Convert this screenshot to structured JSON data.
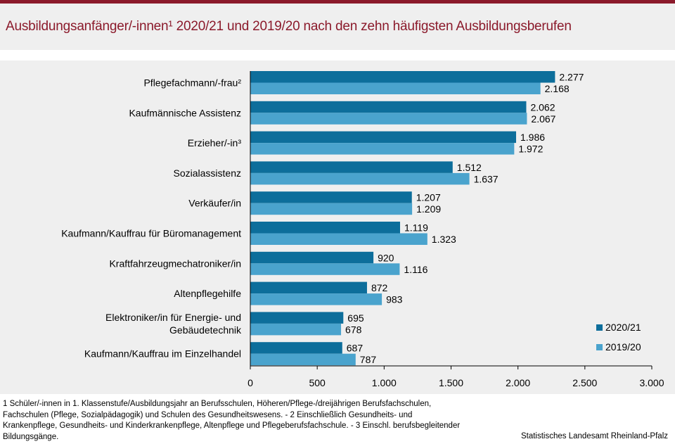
{
  "title": "Ausbildungsanfänger/-innen¹ 2020/21 und 2019/20 nach den zehn häufigsten Ausbildungsberufen",
  "colors": {
    "s1": "#0d6e9b",
    "s2": "#4aa3cd",
    "accent": "#8b1a2b",
    "plot_bg": "#efefef"
  },
  "chart_data": {
    "type": "bar",
    "orientation": "horizontal",
    "categories": [
      [
        "Pflegefachmann/-frau²"
      ],
      [
        "Kaufmännische Assistenz"
      ],
      [
        "Erzieher/-in³"
      ],
      [
        "Sozialassistenz"
      ],
      [
        "Verkäufer/in"
      ],
      [
        "Kaufmann/Kauffrau für Büromanagement"
      ],
      [
        "Kraftfahrzeugmechatroniker/in"
      ],
      [
        "Altenpflegehilfe"
      ],
      [
        "Elektroniker/in für Energie- und",
        "Gebäudetechnik"
      ],
      [
        "Kaufmann/Kauffrau im Einzelhandel"
      ]
    ],
    "series": [
      {
        "name": "2020/21",
        "values": [
          2277,
          2062,
          1986,
          1512,
          1207,
          1119,
          920,
          872,
          695,
          687
        ],
        "labels": [
          "2.277",
          "2.062",
          "1.986",
          "1.512",
          "1.207",
          "1.119",
          "920",
          "872",
          "695",
          "687"
        ]
      },
      {
        "name": "2019/20",
        "values": [
          2168,
          2067,
          1972,
          1637,
          1209,
          1323,
          1116,
          983,
          678,
          787
        ],
        "labels": [
          "2.168",
          "2.067",
          "1.972",
          "1.637",
          "1.209",
          "1.323",
          "1.116",
          "983",
          "678",
          "787"
        ]
      }
    ],
    "xlim": [
      0,
      3000
    ],
    "xticks": [
      0,
      500,
      1000,
      1500,
      2000,
      2500,
      3000
    ],
    "xtick_labels": [
      "0",
      "500",
      "1.000",
      "1.500",
      "2.000",
      "2.500",
      "3.000"
    ],
    "legend_position": "bottom-right",
    "grid": false
  },
  "footnote": "1 Schüler/-innen in 1. Klassenstufe/Ausbildungsjahr an Berufsschulen, Höheren/Pflege-/dreijährigen Berufsfachschulen, Fachschulen (Pflege, Sozialpädagogik) und Schulen des Gesundheitswesens. - 2 Einschließlich Gesundheits- und Krankenpflege, Gesundheits- und Kinderkrankenpflege, Altenpflege und Pflegeberufsfachschule. - 3 Einschl. berufsbegleitender Bildungsgänge.",
  "source": "Statistisches Landesamt Rheinland-Pfalz"
}
